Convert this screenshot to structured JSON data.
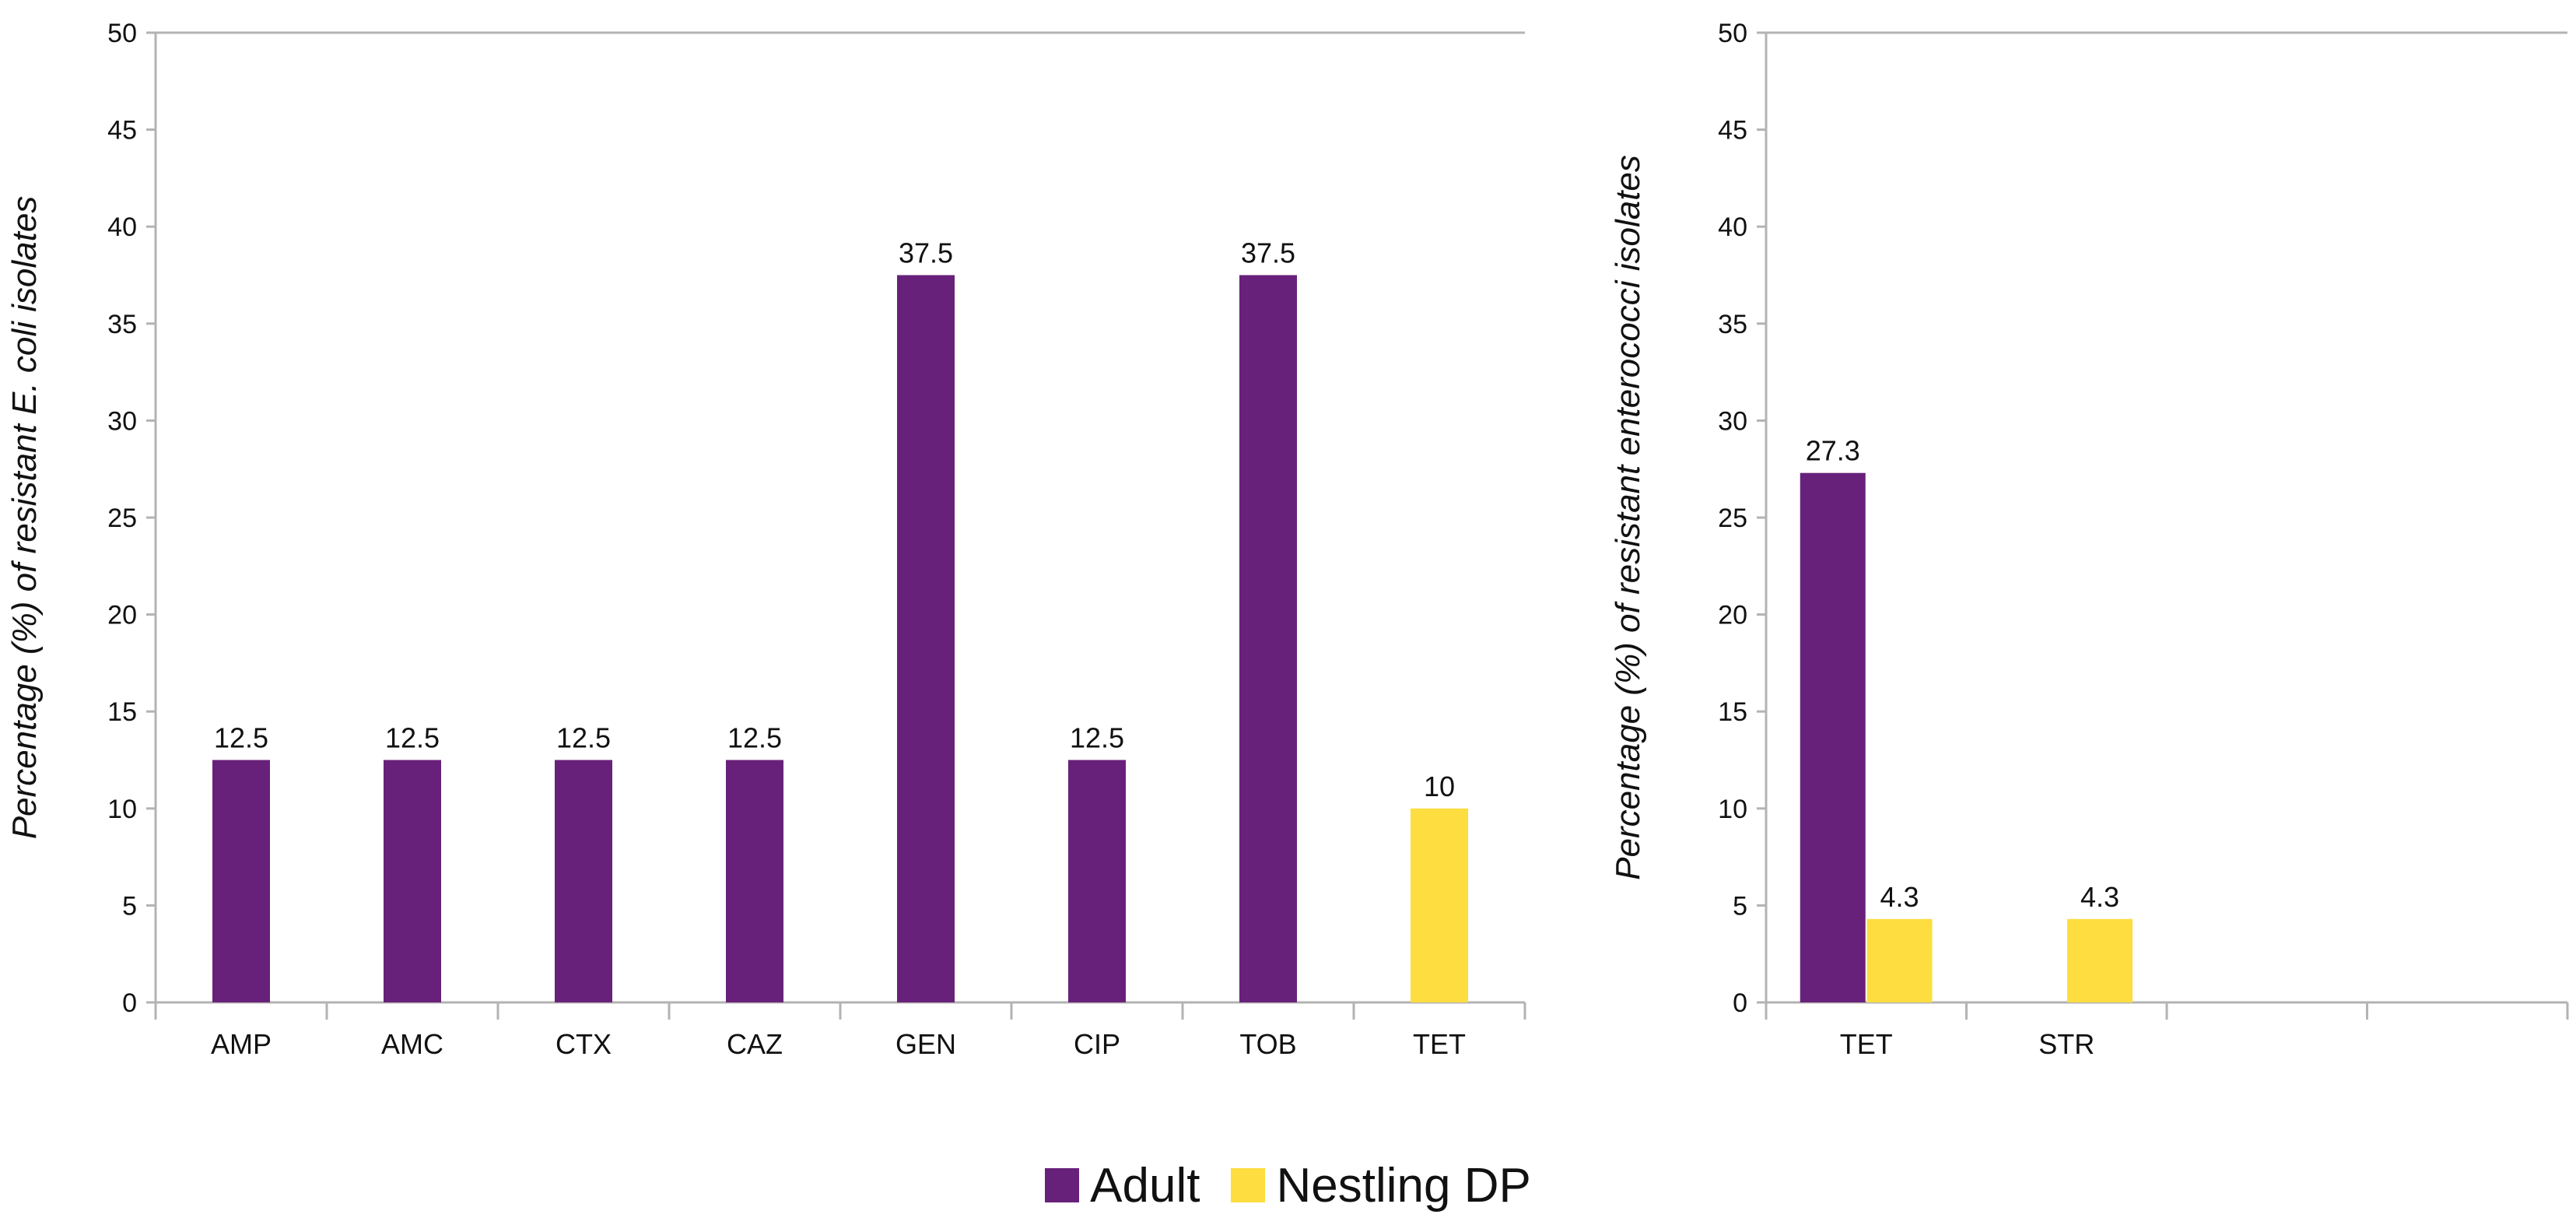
{
  "colors": {
    "adult": "#68217a",
    "nestling": "#fddd3f",
    "axis": "#b3b3b3"
  },
  "legend": [
    {
      "name": "Adult",
      "color": "#68217a"
    },
    {
      "name": "Nestling DP",
      "color": "#fddd3f"
    }
  ],
  "chart_data": [
    {
      "type": "bar",
      "title": "",
      "xlabel": "",
      "ylabel": "Percentage (%) of resistant E. coli isolates",
      "ylim": [
        0,
        50
      ],
      "yticks": [
        0,
        5,
        10,
        15,
        20,
        25,
        30,
        35,
        40,
        45,
        50
      ],
      "categories": [
        "AMP",
        "AMC",
        "CTX",
        "CAZ",
        "GEN",
        "CIP",
        "TOB",
        "TET"
      ],
      "series": [
        {
          "name": "Adult",
          "values": [
            12.5,
            12.5,
            12.5,
            12.5,
            37.5,
            12.5,
            37.5,
            null
          ],
          "labels": [
            "12.5",
            "12.5",
            "12.5",
            "12.5",
            "37.5",
            "12.5",
            "37.5",
            ""
          ]
        },
        {
          "name": "Nestling DP",
          "values": [
            null,
            null,
            null,
            null,
            null,
            null,
            null,
            10
          ],
          "labels": [
            "",
            "",
            "",
            "",
            "",
            "",
            "",
            "10"
          ]
        }
      ]
    },
    {
      "type": "bar",
      "title": "",
      "xlabel": "",
      "ylabel": "Percentage (%) of resistant enterococci isolates",
      "ylim": [
        0,
        50
      ],
      "yticks": [
        0,
        5,
        10,
        15,
        20,
        25,
        30,
        35,
        40,
        45,
        50
      ],
      "categories": [
        "TET",
        "STR",
        "",
        ""
      ],
      "series": [
        {
          "name": "Adult",
          "values": [
            27.3,
            null,
            null,
            null
          ],
          "labels": [
            "27.3",
            "",
            "",
            ""
          ]
        },
        {
          "name": "Nestling DP",
          "values": [
            4.3,
            4.3,
            null,
            null
          ],
          "labels": [
            "4.3",
            "4.3",
            "",
            ""
          ]
        }
      ]
    }
  ]
}
